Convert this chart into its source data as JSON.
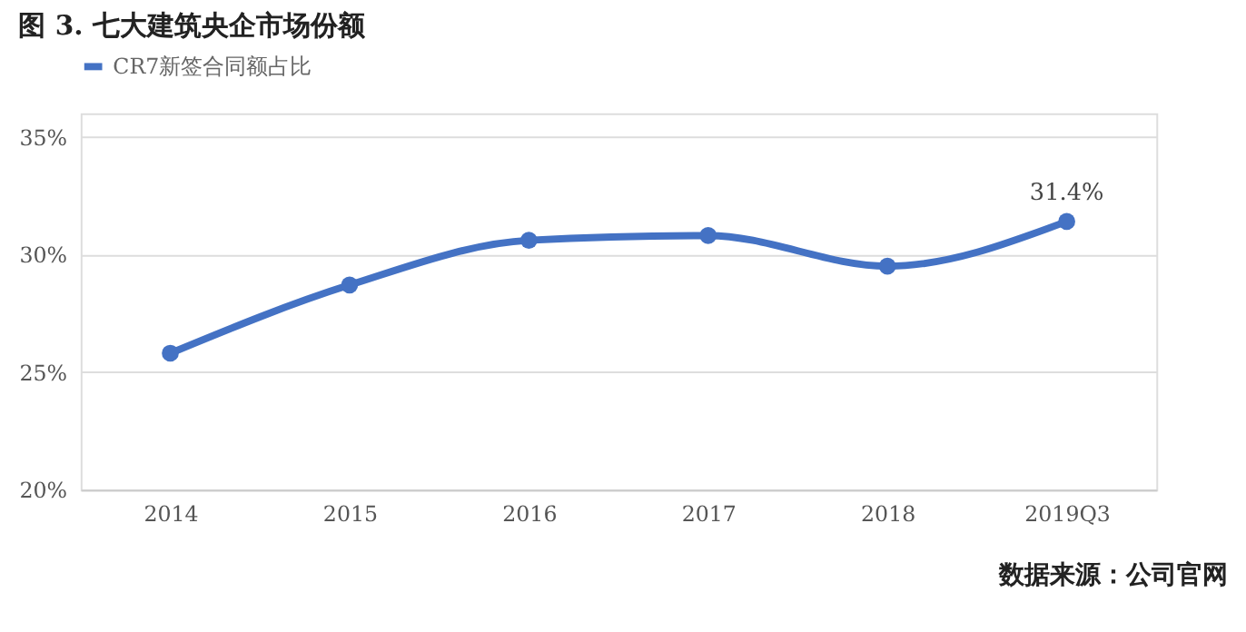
{
  "chart_data": {
    "type": "line",
    "title": "图 3. 七大建筑央企市场份额",
    "categories": [
      "2014",
      "2015",
      "2016",
      "2017",
      "2018",
      "2019Q3"
    ],
    "series": [
      {
        "name": "CR7新签合同额占比",
        "color": "#4472c4",
        "values": [
          25.8,
          28.7,
          30.6,
          30.8,
          29.5,
          31.4
        ],
        "value_labels": [
          null,
          null,
          null,
          null,
          null,
          "31.4%"
        ]
      }
    ],
    "ylim": [
      20,
      36
    ],
    "yticks": [
      {
        "value": 20,
        "label": "20%"
      },
      {
        "value": 25,
        "label": "25%"
      },
      {
        "value": 30,
        "label": "30%"
      },
      {
        "value": 35,
        "label": "35%"
      }
    ],
    "grid": "y",
    "legend": "top",
    "marker": "circle",
    "line_style": "solid",
    "annotations": [
      "数据来源：公司官网"
    ]
  }
}
